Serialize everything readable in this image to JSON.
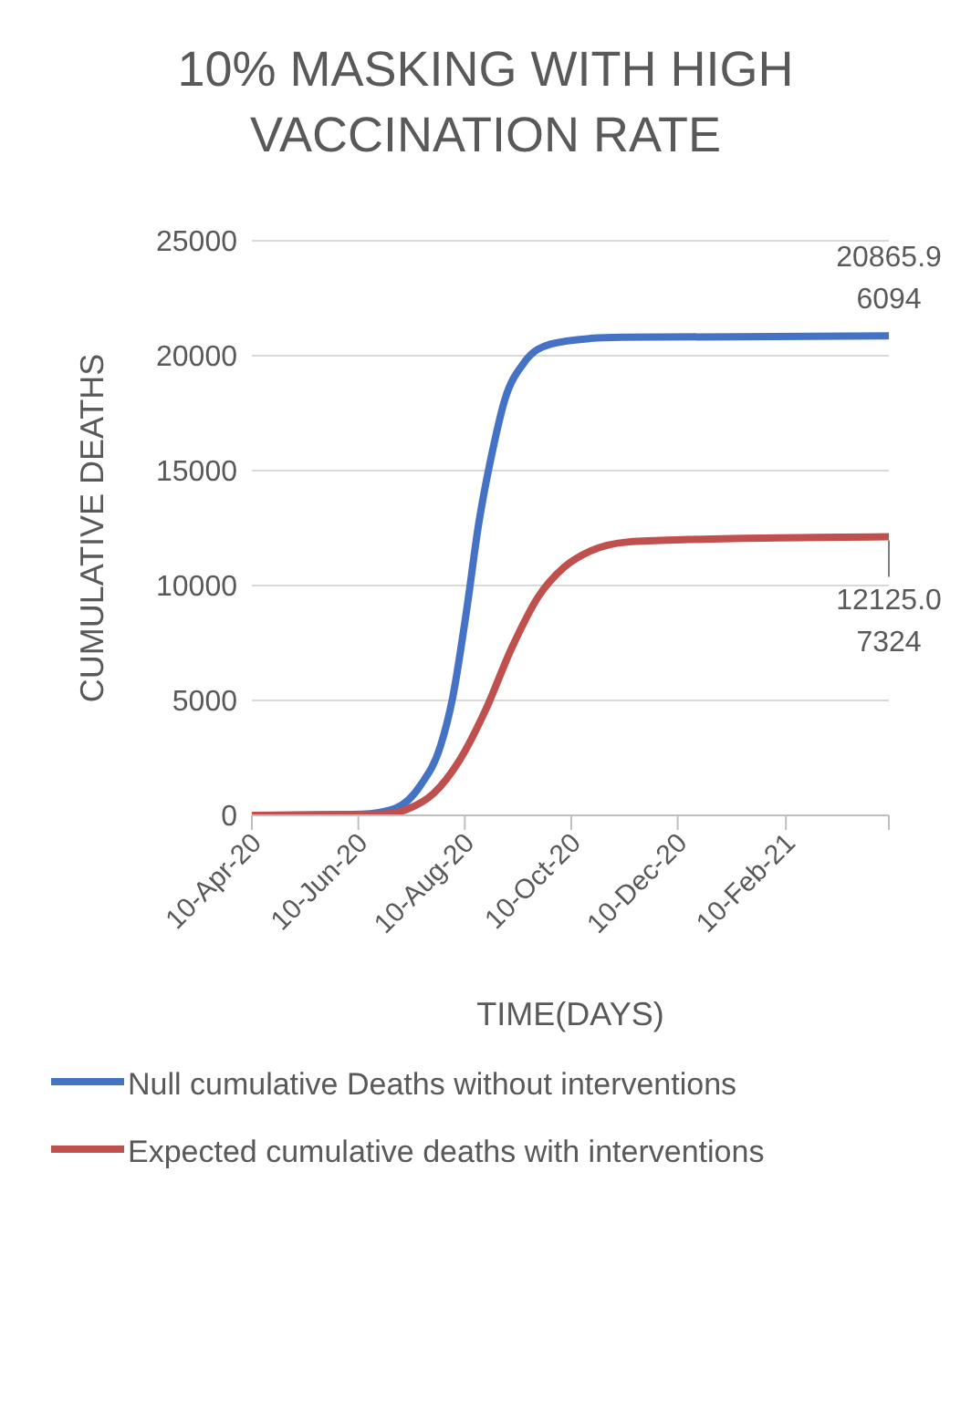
{
  "chart_data": {
    "type": "line",
    "title": "10% MASKING WITH HIGH VACCINATION RATE",
    "xlabel": "TIME(DAYS)",
    "ylabel": "CUMULATIVE DEATHS",
    "xlim": [
      "2020-04-10",
      "2021-04-10"
    ],
    "xticks": [
      {
        "value": "2020-04-10",
        "label": "10-Apr-20"
      },
      {
        "value": "2020-06-10",
        "label": "10-Jun-20"
      },
      {
        "value": "2020-08-10",
        "label": "10-Aug-20"
      },
      {
        "value": "2020-10-10",
        "label": "10-Oct-20"
      },
      {
        "value": "2020-12-10",
        "label": "10-Dec-20"
      },
      {
        "value": "2021-02-10",
        "label": "10-Feb-21"
      },
      {
        "value": "2021-04-10",
        "label": null
      }
    ],
    "ylim": [
      0,
      25000
    ],
    "yticks": [
      0,
      5000,
      10000,
      15000,
      20000,
      25000
    ],
    "grid": "y",
    "legend": "bottom",
    "marker": "none",
    "line_style": "solid",
    "series": [
      {
        "name": "Null cumulative Deaths without interventions",
        "color": "#4472c4",
        "x": [
          "2020-04-10",
          "2020-06-12",
          "2020-07-01",
          "2020-07-16",
          "2020-07-27",
          "2020-08-03",
          "2020-08-11",
          "2020-08-18",
          "2020-08-26",
          "2020-09-02",
          "2020-09-13",
          "2020-09-28",
          "2020-10-21",
          "2020-11-08",
          "2021-04-10"
        ],
        "values": [
          0,
          50,
          300,
          1350,
          3000,
          5100,
          8900,
          12700,
          15900,
          18100,
          19700,
          20500,
          20750,
          20800,
          20865.96094
        ],
        "value_labels": [
          null,
          null,
          null,
          null,
          null,
          null,
          null,
          null,
          null,
          null,
          null,
          null,
          null,
          null,
          "20865.96094"
        ]
      },
      {
        "name": "Expected cumulative deaths with interventions",
        "color": "#c0504d",
        "x": [
          "2020-04-10",
          "2020-06-24",
          "2020-07-08",
          "2020-07-23",
          "2020-08-07",
          "2020-08-22",
          "2020-09-06",
          "2020-09-21",
          "2020-10-06",
          "2020-10-21",
          "2020-11-12",
          "2020-12-16",
          "2021-04-10"
        ],
        "values": [
          0,
          50,
          270,
          950,
          2400,
          4600,
          7300,
          9500,
          10800,
          11500,
          11900,
          12000,
          12125.07324
        ],
        "value_labels": [
          null,
          null,
          null,
          null,
          null,
          null,
          null,
          null,
          null,
          null,
          null,
          null,
          "12125.07324"
        ]
      }
    ]
  }
}
